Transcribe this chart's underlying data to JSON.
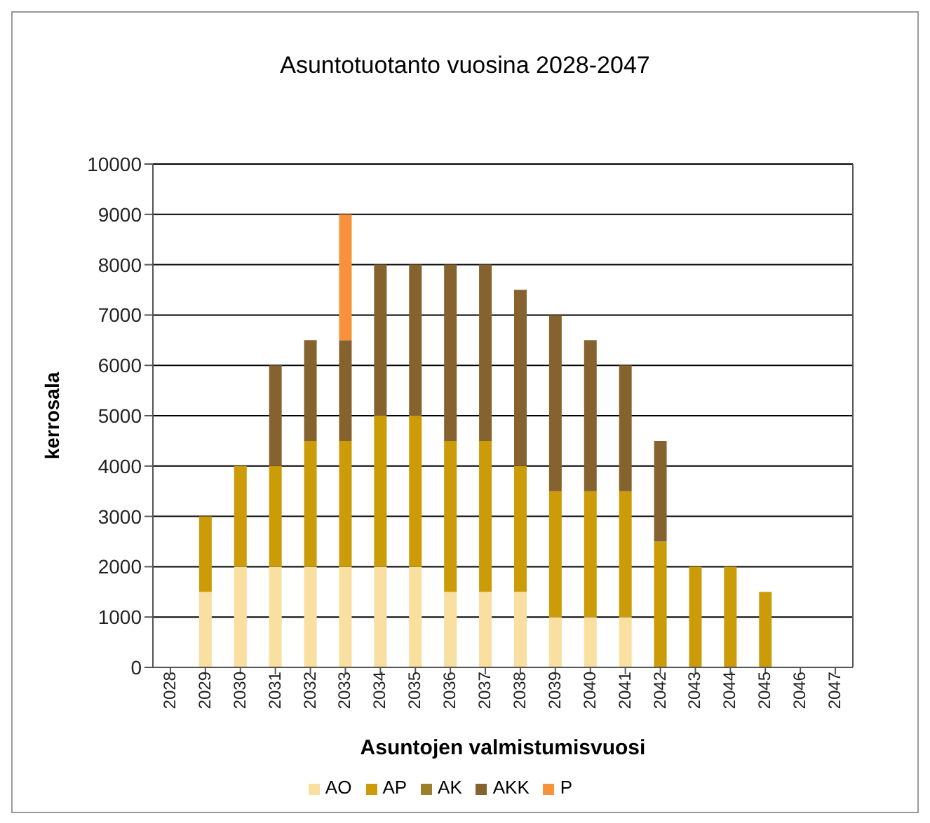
{
  "chart_data": {
    "type": "bar",
    "stacked": true,
    "title": "Asuntotuotanto vuosina 2028-2047",
    "xlabel": "Asuntojen valmistumisvuosi",
    "ylabel": "kerrosala",
    "categories": [
      "2028",
      "2029",
      "2030",
      "2031",
      "2032",
      "2033",
      "2034",
      "2035",
      "2036",
      "2037",
      "2038",
      "2039",
      "2040",
      "2041",
      "2042",
      "2043",
      "2044",
      "2045",
      "2046",
      "2047"
    ],
    "series": [
      {
        "name": "AO",
        "color": "#f9dfa0",
        "values": [
          0,
          1500,
          2000,
          2000,
          2000,
          2000,
          2000,
          2000,
          1500,
          1500,
          1500,
          1000,
          1000,
          1000,
          0,
          0,
          0,
          0,
          0,
          0
        ]
      },
      {
        "name": "AP",
        "color": "#cc9b08",
        "values": [
          0,
          1500,
          2000,
          2000,
          2500,
          2500,
          3000,
          3000,
          3000,
          3000,
          2500,
          2500,
          2500,
          2500,
          2500,
          2000,
          2000,
          1500,
          0,
          0
        ]
      },
      {
        "name": "AK",
        "color": "#9c7f2b",
        "values": [
          0,
          0,
          0,
          0,
          0,
          0,
          0,
          0,
          0,
          0,
          0,
          0,
          0,
          0,
          0,
          0,
          0,
          0,
          0,
          0
        ]
      },
      {
        "name": "AKK",
        "color": "#86632e",
        "values": [
          0,
          0,
          0,
          2000,
          2000,
          2000,
          3000,
          3000,
          3500,
          3500,
          3500,
          3500,
          3000,
          2500,
          2000,
          0,
          0,
          0,
          0,
          0
        ]
      },
      {
        "name": "P",
        "color": "#f7923a",
        "values": [
          0,
          0,
          0,
          0,
          0,
          2500,
          0,
          0,
          0,
          0,
          0,
          0,
          0,
          0,
          0,
          0,
          0,
          0,
          0,
          0
        ]
      }
    ],
    "ylim": [
      0,
      10000
    ],
    "yticks": [
      0,
      1000,
      2000,
      3000,
      4000,
      5000,
      6000,
      7000,
      8000,
      9000,
      10000
    ],
    "grid": "y",
    "legend": "bottom"
  }
}
